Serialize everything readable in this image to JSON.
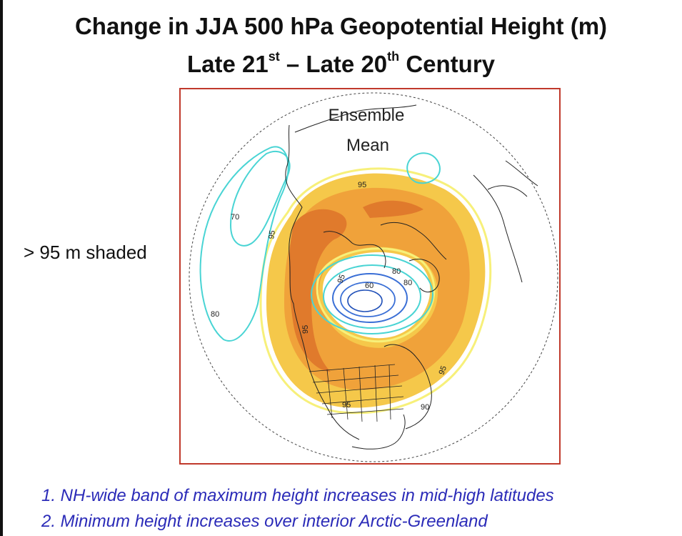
{
  "title": {
    "line1": "Change in JJA 500 hPa Geopotential Height (m)",
    "line2_a": "Late 21",
    "line2_sup_a": "st",
    "line2_b": " – Late 20",
    "line2_sup_b": "th",
    "line2_c": " Century"
  },
  "panel_label": {
    "line1": "Ensemble",
    "line2": "Mean"
  },
  "shading_note": "> 95 m shaded",
  "contour_labels": [
    "95",
    "70",
    "95",
    "95",
    "80",
    "60",
    "80",
    "80",
    "95",
    "95",
    "95",
    "95",
    "90"
  ],
  "notes": [
    "1. NH-wide band of maximum height increases in mid-high latitudes",
    "2. Minimum height increases over interior Arctic-Greenland"
  ],
  "colors": {
    "frame": "#c0392b",
    "shade_light": "#f5c84a",
    "shade_mid": "#f0a23a",
    "shade_dark": "#e07a2c",
    "contour_yellow": "#f7f07a",
    "contour_cyan": "#49d4d4",
    "contour_blue": "#3a6fd6",
    "notes_text": "#2b2bb8"
  }
}
